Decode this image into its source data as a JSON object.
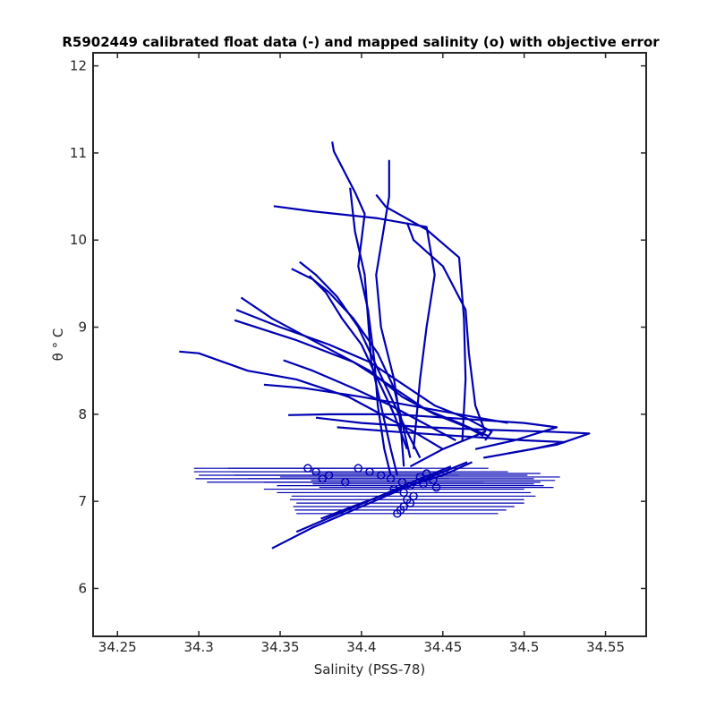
{
  "chart_data": {
    "type": "line",
    "title": "R5902449 calibrated float data (-) and mapped salinity (o) with objective error",
    "xlabel": "Salinity (PSS-78)",
    "ylabel": "θ ° C",
    "xlim": [
      34.235,
      34.575
    ],
    "ylim": [
      5.45,
      12.15
    ],
    "xticks": [
      34.25,
      34.3,
      34.35,
      34.4,
      34.45,
      34.5,
      34.55
    ],
    "yticks": [
      6,
      7,
      8,
      9,
      10,
      11,
      12
    ],
    "xtick_labels": [
      "34.25",
      "34.3",
      "34.35",
      "34.4",
      "34.45",
      "34.5",
      "34.55"
    ],
    "ytick_labels": [
      "6",
      "7",
      "8",
      "9",
      "10",
      "11",
      "12"
    ],
    "grid": false,
    "line_color": "#0000b3",
    "profiles": [
      {
        "x": [
          34.382,
          34.383,
          34.396,
          34.402,
          34.398,
          34.404,
          34.408,
          34.41,
          34.414,
          34.418
        ],
        "y": [
          11.13,
          11.02,
          10.55,
          10.3,
          9.7,
          9.2,
          8.6,
          8.1,
          7.6,
          7.3
        ]
      },
      {
        "x": [
          34.417,
          34.417,
          34.413,
          34.409,
          34.412,
          34.42,
          34.424,
          34.426
        ],
        "y": [
          10.92,
          10.5,
          10.05,
          9.6,
          9.0,
          8.4,
          7.9,
          7.4
        ]
      },
      {
        "x": [
          34.346,
          34.37,
          34.41,
          34.44,
          34.445,
          34.44,
          34.436,
          34.432
        ],
        "y": [
          10.39,
          10.33,
          10.25,
          10.15,
          9.6,
          9.0,
          8.4,
          7.6
        ]
      },
      {
        "x": [
          34.393,
          34.396,
          34.402,
          34.404,
          34.406,
          34.412,
          34.418,
          34.422
        ],
        "y": [
          10.6,
          10.1,
          9.6,
          9.1,
          8.6,
          8.1,
          7.6,
          7.3
        ]
      },
      {
        "x": [
          34.409,
          34.415,
          34.44,
          34.46,
          34.463,
          34.464,
          34.462
        ],
        "y": [
          10.52,
          10.38,
          10.12,
          9.8,
          9.1,
          8.4,
          7.7
        ]
      },
      {
        "x": [
          34.428,
          34.432,
          34.45,
          34.464,
          34.466,
          34.47,
          34.476,
          34.45,
          34.43
        ],
        "y": [
          10.2,
          10.0,
          9.7,
          9.2,
          8.7,
          8.1,
          7.8,
          7.6,
          7.4
        ]
      },
      {
        "x": [
          34.357,
          34.37,
          34.38,
          34.395,
          34.41,
          34.42,
          34.425,
          34.43
        ],
        "y": [
          9.67,
          9.55,
          9.4,
          9.1,
          8.7,
          8.3,
          7.9,
          7.5
        ]
      },
      {
        "x": [
          34.362,
          34.372,
          34.385,
          34.398,
          34.408,
          34.418,
          34.428,
          34.436
        ],
        "y": [
          9.75,
          9.6,
          9.35,
          9.0,
          8.6,
          8.2,
          7.8,
          7.5
        ]
      },
      {
        "x": [
          34.368,
          34.378,
          34.388,
          34.4,
          34.41,
          34.42,
          34.428
        ],
        "y": [
          9.59,
          9.4,
          9.1,
          8.8,
          8.4,
          8.0,
          7.6
        ]
      },
      {
        "x": [
          34.326,
          34.345,
          34.365,
          34.385,
          34.405,
          34.425,
          34.445,
          34.465,
          34.475
        ],
        "y": [
          9.34,
          9.1,
          8.9,
          8.7,
          8.5,
          8.2,
          8.0,
          7.85,
          7.75
        ]
      },
      {
        "x": [
          34.323,
          34.35,
          34.38,
          34.405,
          34.425,
          34.445,
          34.465,
          34.48,
          34.476
        ],
        "y": [
          9.2,
          9.0,
          8.8,
          8.6,
          8.35,
          8.1,
          7.95,
          7.8,
          7.7
        ]
      },
      {
        "x": [
          34.322,
          34.36,
          34.395,
          34.42,
          34.44,
          34.46,
          34.478
        ],
        "y": [
          9.08,
          8.85,
          8.6,
          8.3,
          8.05,
          7.9,
          7.75
        ]
      },
      {
        "x": [
          34.288,
          34.3,
          34.33,
          34.36,
          34.392,
          34.412,
          34.432,
          34.45
        ],
        "y": [
          8.72,
          8.7,
          8.5,
          8.4,
          8.2,
          8.0,
          7.8,
          7.6
        ]
      },
      {
        "x": [
          34.352,
          34.37,
          34.395,
          34.418,
          34.438,
          34.458
        ],
        "y": [
          8.62,
          8.5,
          8.3,
          8.1,
          7.9,
          7.7
        ]
      },
      {
        "x": [
          34.34,
          34.365,
          34.4,
          34.43,
          34.46,
          34.49
        ],
        "y": [
          8.34,
          8.3,
          8.2,
          8.1,
          8.0,
          7.9
        ]
      },
      {
        "x": [
          34.355,
          34.38,
          34.42,
          34.46,
          34.5,
          34.52,
          34.494,
          34.47
        ],
        "y": [
          7.99,
          8.0,
          8.0,
          7.95,
          7.9,
          7.85,
          7.7,
          7.6
        ]
      },
      {
        "x": [
          34.372,
          34.4,
          34.44,
          34.48,
          34.515,
          34.54,
          34.52,
          34.49
        ],
        "y": [
          7.96,
          7.9,
          7.85,
          7.82,
          7.8,
          7.78,
          7.65,
          7.55
        ]
      },
      {
        "x": [
          34.385,
          34.42,
          34.46,
          34.5,
          34.525,
          34.505,
          34.475
        ],
        "y": [
          7.85,
          7.8,
          7.75,
          7.7,
          7.68,
          7.6,
          7.5
        ]
      },
      {
        "x": [
          34.345,
          34.37,
          34.395,
          34.42,
          34.445,
          34.465
        ],
        "y": [
          6.46,
          6.7,
          6.9,
          7.1,
          7.3,
          7.45
        ]
      },
      {
        "x": [
          34.36,
          34.385,
          34.41,
          34.435,
          34.455
        ],
        "y": [
          6.65,
          6.85,
          7.05,
          7.25,
          7.4
        ]
      },
      {
        "x": [
          34.375,
          34.4,
          34.425,
          34.45,
          34.468
        ],
        "y": [
          6.8,
          6.98,
          7.15,
          7.3,
          7.45
        ]
      }
    ],
    "error_bars": [
      {
        "salinity": 34.367,
        "theta": 7.38,
        "half_width": 0.07
      },
      {
        "salinity": 34.372,
        "theta": 7.34,
        "half_width": 0.075
      },
      {
        "salinity": 34.38,
        "theta": 7.3,
        "half_width": 0.08
      },
      {
        "salinity": 34.376,
        "theta": 7.26,
        "half_width": 0.078
      },
      {
        "salinity": 34.39,
        "theta": 7.22,
        "half_width": 0.085
      },
      {
        "salinity": 34.398,
        "theta": 7.38,
        "half_width": 0.08
      },
      {
        "salinity": 34.405,
        "theta": 7.34,
        "half_width": 0.085
      },
      {
        "salinity": 34.412,
        "theta": 7.3,
        "half_width": 0.09
      },
      {
        "salinity": 34.418,
        "theta": 7.26,
        "half_width": 0.088
      },
      {
        "salinity": 34.425,
        "theta": 7.22,
        "half_width": 0.085
      },
      {
        "salinity": 34.43,
        "theta": 7.18,
        "half_width": 0.082
      },
      {
        "salinity": 34.42,
        "theta": 7.14,
        "half_width": 0.08
      },
      {
        "salinity": 34.426,
        "theta": 7.1,
        "half_width": 0.078
      },
      {
        "salinity": 34.432,
        "theta": 7.06,
        "half_width": 0.075
      },
      {
        "salinity": 34.428,
        "theta": 7.02,
        "half_width": 0.072
      },
      {
        "salinity": 34.43,
        "theta": 6.98,
        "half_width": 0.07
      },
      {
        "salinity": 34.426,
        "theta": 6.94,
        "half_width": 0.068
      },
      {
        "salinity": 34.424,
        "theta": 6.9,
        "half_width": 0.065
      },
      {
        "salinity": 34.422,
        "theta": 6.86,
        "half_width": 0.062
      },
      {
        "salinity": 34.436,
        "theta": 7.28,
        "half_width": 0.086
      },
      {
        "salinity": 34.44,
        "theta": 7.32,
        "half_width": 0.07
      },
      {
        "salinity": 34.444,
        "theta": 7.24,
        "half_width": 0.075
      },
      {
        "salinity": 34.438,
        "theta": 7.2,
        "half_width": 0.068
      },
      {
        "salinity": 34.446,
        "theta": 7.16,
        "half_width": 0.072
      }
    ]
  }
}
